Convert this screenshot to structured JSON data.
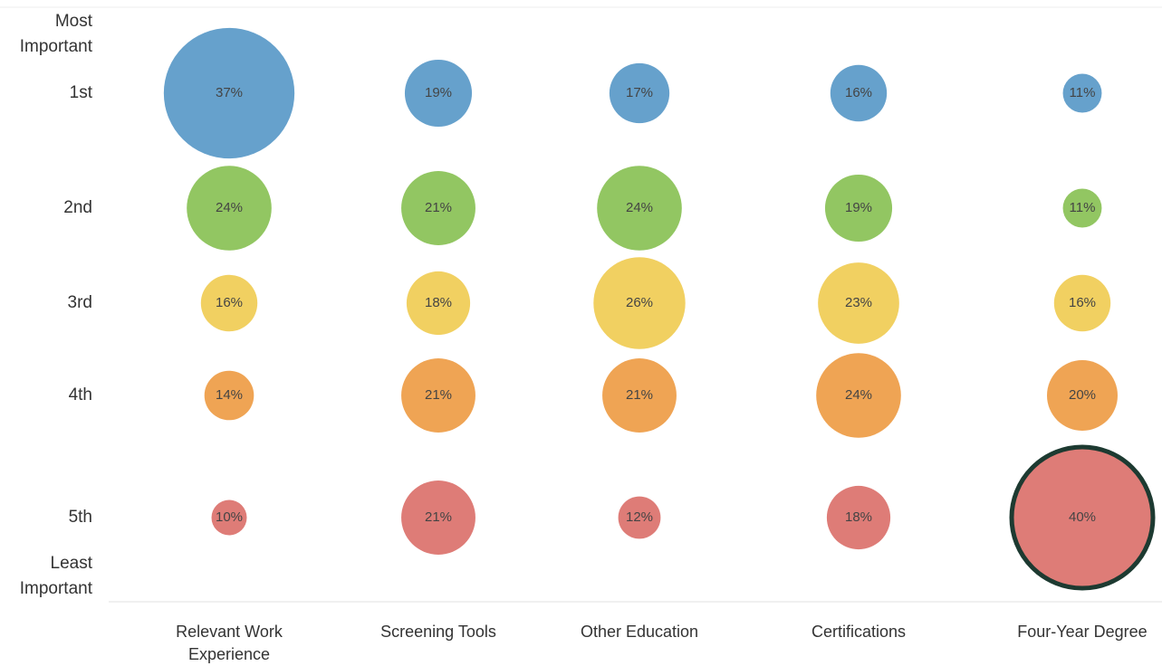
{
  "chart_data": {
    "type": "bubble",
    "y_top_label": [
      "Most",
      "Important"
    ],
    "y_bottom_label": [
      "Least",
      "Important"
    ],
    "categories": [
      "Relevant Work Experience",
      "Screening Tools",
      "Other Education",
      "Certifications",
      "Four-Year Degree"
    ],
    "series": [
      {
        "name": "1st",
        "color": "#5e9cc9",
        "values": [
          37,
          19,
          17,
          16,
          11
        ],
        "value_labels": [
          "37%",
          "19%",
          "17%",
          "16%",
          "11%"
        ]
      },
      {
        "name": "2nd",
        "color": "#8cc35a",
        "values": [
          24,
          21,
          24,
          19,
          11
        ],
        "value_labels": [
          "24%",
          "21%",
          "24%",
          "19%",
          "11%"
        ]
      },
      {
        "name": "3rd",
        "color": "#f0cd58",
        "values": [
          16,
          18,
          26,
          23,
          16
        ],
        "value_labels": [
          "16%",
          "18%",
          "26%",
          "23%",
          "16%"
        ]
      },
      {
        "name": "4th",
        "color": "#ee9f4b",
        "values": [
          14,
          21,
          21,
          24,
          20
        ],
        "value_labels": [
          "14%",
          "21%",
          "21%",
          "24%",
          "20%"
        ]
      },
      {
        "name": "5th",
        "color": "#dc7570",
        "values": [
          10,
          21,
          12,
          18,
          40
        ],
        "value_labels": [
          "10%",
          "21%",
          "12%",
          "18%",
          "40%"
        ]
      }
    ],
    "highlighted": [
      4,
      4
    ],
    "highlight_color": "#1d3a31"
  }
}
